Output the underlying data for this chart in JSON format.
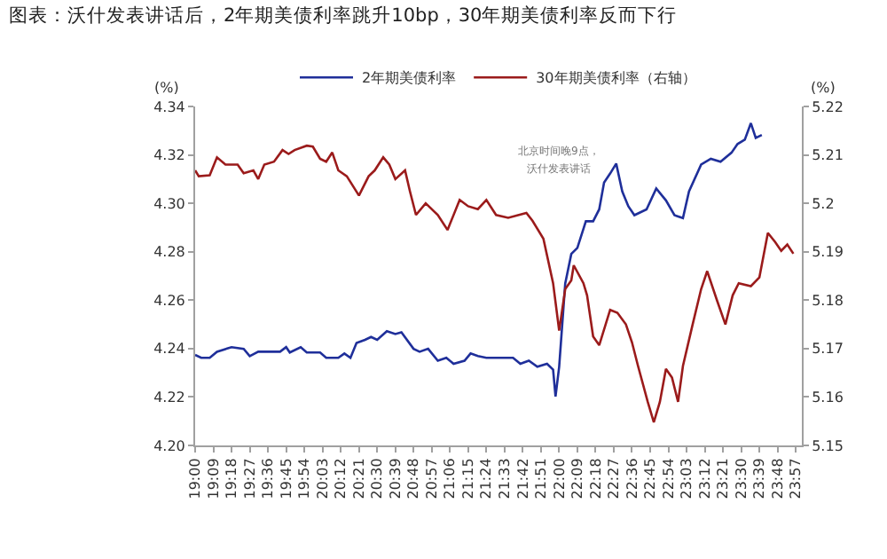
{
  "chart_data": {
    "type": "line",
    "title": "图表：沃什发表讲话后，2年期美债利率跳升10bp，30年期美债利率反而下行",
    "ylabel": "(%)",
    "y2label": "(%)",
    "annotations": [
      "北京时间晚9点，",
      "沃什发表讲话"
    ],
    "series": [
      {
        "name": "2年期美债利率",
        "color": "#1f2f9a",
        "x": [
          19.0,
          19.05,
          19.12,
          19.18,
          19.3,
          19.4,
          19.45,
          19.52,
          19.7,
          19.75,
          19.78,
          19.87,
          19.92,
          20.03,
          20.08,
          20.18,
          20.23,
          20.28,
          20.33,
          20.4,
          20.45,
          20.5,
          20.58,
          20.65,
          20.7,
          20.8,
          20.85,
          20.92,
          21.0,
          21.07,
          21.13,
          21.22,
          21.27,
          21.33,
          21.4,
          21.62,
          21.68,
          21.75,
          21.82,
          21.9,
          21.95,
          21.97,
          22.0,
          22.05,
          22.1,
          22.15,
          22.22,
          22.28,
          22.33,
          22.37,
          22.42,
          22.47,
          22.52,
          22.57,
          22.62,
          22.72,
          22.8,
          22.88,
          22.95,
          23.02,
          23.07,
          23.17,
          23.25,
          23.33,
          23.42,
          23.47,
          23.53,
          23.58,
          23.62,
          23.67
        ],
        "values": [
          4.2374,
          4.2362,
          4.2362,
          4.2387,
          4.2406,
          4.2399,
          4.2369,
          4.2387,
          4.2387,
          4.2406,
          4.2384,
          4.2406,
          4.2384,
          4.2384,
          4.2362,
          4.2362,
          4.238,
          4.2362,
          4.2423,
          4.2436,
          4.2448,
          4.2436,
          4.2472,
          4.246,
          4.2467,
          4.2399,
          4.2387,
          4.2399,
          4.235,
          4.2362,
          4.2337,
          4.235,
          4.238,
          4.2369,
          4.2362,
          4.2362,
          4.2337,
          4.235,
          4.2325,
          4.2337,
          4.2313,
          4.2202,
          4.2325,
          4.2669,
          4.2791,
          4.2816,
          4.2926,
          4.2926,
          4.2975,
          4.3086,
          4.3123,
          4.3164,
          4.3049,
          4.2988,
          4.2951,
          4.2975,
          4.3061,
          4.3012,
          4.2951,
          4.2939,
          4.3049,
          4.316,
          4.3184,
          4.3172,
          4.3209,
          4.3245,
          4.3263,
          4.3331,
          4.327,
          4.3282
        ]
      },
      {
        "name": "30年期美债利率（右轴）",
        "color": "#9b1b1b",
        "axis": "y2",
        "x": [
          19.0,
          19.03,
          19.12,
          19.18,
          19.25,
          19.35,
          19.4,
          19.48,
          19.52,
          19.57,
          19.65,
          19.72,
          19.77,
          19.82,
          19.92,
          19.97,
          20.03,
          20.08,
          20.13,
          20.18,
          20.25,
          20.35,
          20.43,
          20.48,
          20.55,
          20.6,
          20.65,
          20.73,
          20.77,
          20.82,
          20.9,
          21.0,
          21.08,
          21.18,
          21.25,
          21.33,
          21.4,
          21.48,
          21.58,
          21.73,
          21.78,
          21.87,
          21.95,
          22.0,
          22.05,
          22.1,
          22.12,
          22.2,
          22.23,
          22.28,
          22.33,
          22.42,
          22.48,
          22.55,
          22.6,
          22.65,
          22.73,
          22.78,
          22.83,
          22.88,
          22.93,
          22.98,
          23.02,
          23.1,
          23.17,
          23.22,
          23.3,
          23.37,
          23.43,
          23.48,
          23.58,
          23.65,
          23.72,
          23.78,
          23.83,
          23.88,
          23.93
        ],
        "values": [
          5.2068,
          5.2056,
          5.2058,
          5.2095,
          5.208,
          5.208,
          5.2062,
          5.2068,
          5.205,
          5.208,
          5.2086,
          5.211,
          5.2102,
          5.211,
          5.2119,
          5.2117,
          5.2092,
          5.2086,
          5.2105,
          5.2068,
          5.2056,
          5.2016,
          5.2056,
          5.2068,
          5.2095,
          5.208,
          5.205,
          5.2068,
          5.2025,
          5.1976,
          5.2,
          5.1976,
          5.1945,
          5.2007,
          5.1994,
          5.1988,
          5.2007,
          5.1976,
          5.197,
          5.198,
          5.1964,
          5.1927,
          5.1835,
          5.1737,
          5.1823,
          5.1841,
          5.1872,
          5.1835,
          5.181,
          5.1725,
          5.1707,
          5.178,
          5.1774,
          5.175,
          5.1713,
          5.1664,
          5.159,
          5.1548,
          5.159,
          5.1658,
          5.164,
          5.159,
          5.1664,
          5.175,
          5.1823,
          5.186,
          5.18,
          5.175,
          5.181,
          5.1835,
          5.1829,
          5.1847,
          5.1939,
          5.192,
          5.1902,
          5.1915,
          5.1896
        ]
      }
    ],
    "xlim": [
      19.0,
      24.0
    ],
    "xticks": [
      {
        "value": 19.0,
        "label": "19:00"
      },
      {
        "value": 19.15,
        "label": "19:09"
      },
      {
        "value": 19.3,
        "label": "19:18"
      },
      {
        "value": 19.45,
        "label": "19:27"
      },
      {
        "value": 19.6,
        "label": "19:36"
      },
      {
        "value": 19.75,
        "label": "19:45"
      },
      {
        "value": 19.9,
        "label": "19:54"
      },
      {
        "value": 20.05,
        "label": "20:03"
      },
      {
        "value": 20.2,
        "label": "20:12"
      },
      {
        "value": 20.35,
        "label": "20:21"
      },
      {
        "value": 20.5,
        "label": "20:30"
      },
      {
        "value": 20.65,
        "label": "20:39"
      },
      {
        "value": 20.8,
        "label": "20:48"
      },
      {
        "value": 20.95,
        "label": "20:57"
      },
      {
        "value": 21.1,
        "label": "21:06"
      },
      {
        "value": 21.25,
        "label": "21:15"
      },
      {
        "value": 21.4,
        "label": "21:24"
      },
      {
        "value": 21.55,
        "label": "21:33"
      },
      {
        "value": 21.7,
        "label": "21:42"
      },
      {
        "value": 21.85,
        "label": "21:51"
      },
      {
        "value": 22.0,
        "label": "22:00"
      },
      {
        "value": 22.15,
        "label": "22:09"
      },
      {
        "value": 22.3,
        "label": "22:18"
      },
      {
        "value": 22.45,
        "label": "22:27"
      },
      {
        "value": 22.6,
        "label": "22:36"
      },
      {
        "value": 22.75,
        "label": "22:45"
      },
      {
        "value": 22.9,
        "label": "22:54"
      },
      {
        "value": 23.05,
        "label": "23:03"
      },
      {
        "value": 23.2,
        "label": "23:12"
      },
      {
        "value": 23.35,
        "label": "23:21"
      },
      {
        "value": 23.5,
        "label": "23:30"
      },
      {
        "value": 23.65,
        "label": "23:39"
      },
      {
        "value": 23.8,
        "label": "23:48"
      },
      {
        "value": 23.95,
        "label": "23:57"
      }
    ],
    "ylim": [
      4.2,
      4.34
    ],
    "yticks": [
      {
        "value": 4.2,
        "label": "4.20"
      },
      {
        "value": 4.22,
        "label": "4.22"
      },
      {
        "value": 4.24,
        "label": "4.24"
      },
      {
        "value": 4.26,
        "label": "4.26"
      },
      {
        "value": 4.28,
        "label": "4.28"
      },
      {
        "value": 4.3,
        "label": "4.30"
      },
      {
        "value": 4.32,
        "label": "4.32"
      },
      {
        "value": 4.34,
        "label": "4.34"
      }
    ],
    "y2lim": [
      5.15,
      5.22
    ],
    "y2ticks": [
      5.15,
      5.16,
      5.17,
      5.18,
      5.19,
      5.2,
      5.21,
      5.22
    ],
    "legend": "top",
    "marker": "none",
    "line_style": "solid"
  }
}
